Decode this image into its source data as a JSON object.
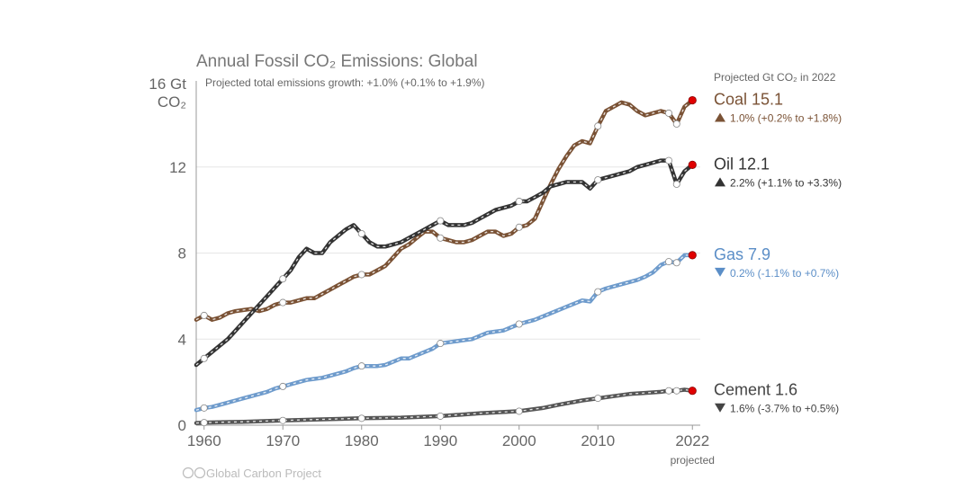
{
  "chart_data": {
    "type": "line",
    "title": "Annual Fossil CO₂ Emissions: Global",
    "subtitle": "Projected total emissions growth: +1.0% (+0.1% to +1.9%)",
    "y_unit_line1": "16 Gt",
    "y_unit_line2": "CO₂",
    "ylim": [
      0,
      16
    ],
    "xlim": [
      1959,
      2023
    ],
    "yticks": [
      0,
      4,
      8,
      12
    ],
    "xticks": [
      1960,
      1970,
      1980,
      1990,
      2000,
      2010,
      2022
    ],
    "xtick_note": "projected",
    "side_heading": "Projected Gt CO₂ in 2022",
    "credit": "Global Carbon Project",
    "series": [
      {
        "name": "Coal",
        "projected": "15.1",
        "change": "1.0% (+0.2% to +1.8%)",
        "direction": "up",
        "color": "#7a5235",
        "label_color": "#7a5235",
        "x": [
          1959,
          1960,
          1961,
          1962,
          1963,
          1964,
          1965,
          1966,
          1967,
          1968,
          1969,
          1970,
          1971,
          1972,
          1973,
          1974,
          1975,
          1976,
          1977,
          1978,
          1979,
          1980,
          1981,
          1982,
          1983,
          1984,
          1985,
          1986,
          1987,
          1988,
          1989,
          1990,
          1991,
          1992,
          1993,
          1994,
          1995,
          1996,
          1997,
          1998,
          1999,
          2000,
          2001,
          2002,
          2003,
          2004,
          2005,
          2006,
          2007,
          2008,
          2009,
          2010,
          2011,
          2012,
          2013,
          2014,
          2015,
          2016,
          2017,
          2018,
          2019,
          2020,
          2021,
          2022
        ],
        "y": [
          4.9,
          5.1,
          4.9,
          5.0,
          5.2,
          5.3,
          5.35,
          5.4,
          5.3,
          5.4,
          5.6,
          5.7,
          5.7,
          5.8,
          5.9,
          5.9,
          6.1,
          6.3,
          6.5,
          6.7,
          6.9,
          7.0,
          7.0,
          7.2,
          7.4,
          7.8,
          8.2,
          8.4,
          8.7,
          9.0,
          9.0,
          8.7,
          8.6,
          8.5,
          8.5,
          8.6,
          8.8,
          9.0,
          9.0,
          8.8,
          8.9,
          9.2,
          9.3,
          9.6,
          10.4,
          11.2,
          11.9,
          12.5,
          13.0,
          13.2,
          13.1,
          13.9,
          14.6,
          14.8,
          15.0,
          14.9,
          14.6,
          14.4,
          14.5,
          14.6,
          14.5,
          14.0,
          14.8,
          15.1
        ]
      },
      {
        "name": "Oil",
        "projected": "12.1",
        "change": "2.2% (+1.1% to +3.3%)",
        "direction": "up",
        "color": "#333333",
        "label_color": "#333333",
        "x": [
          1959,
          1960,
          1961,
          1962,
          1963,
          1964,
          1965,
          1966,
          1967,
          1968,
          1969,
          1970,
          1971,
          1972,
          1973,
          1974,
          1975,
          1976,
          1977,
          1978,
          1979,
          1980,
          1981,
          1982,
          1983,
          1984,
          1985,
          1986,
          1987,
          1988,
          1989,
          1990,
          1991,
          1992,
          1993,
          1994,
          1995,
          1996,
          1997,
          1998,
          1999,
          2000,
          2001,
          2002,
          2003,
          2004,
          2005,
          2006,
          2007,
          2008,
          2009,
          2010,
          2011,
          2012,
          2013,
          2014,
          2015,
          2016,
          2017,
          2018,
          2019,
          2020,
          2021,
          2022
        ],
        "y": [
          2.8,
          3.1,
          3.4,
          3.7,
          4.0,
          4.4,
          4.8,
          5.2,
          5.6,
          6.0,
          6.4,
          6.8,
          7.2,
          7.8,
          8.2,
          8.0,
          8.0,
          8.5,
          8.8,
          9.1,
          9.3,
          8.9,
          8.5,
          8.3,
          8.3,
          8.4,
          8.5,
          8.7,
          8.9,
          9.1,
          9.3,
          9.5,
          9.3,
          9.3,
          9.3,
          9.4,
          9.6,
          9.8,
          10.0,
          10.1,
          10.2,
          10.4,
          10.4,
          10.6,
          10.8,
          11.1,
          11.2,
          11.3,
          11.3,
          11.3,
          11.0,
          11.4,
          11.5,
          11.6,
          11.7,
          11.8,
          12.0,
          12.1,
          12.2,
          12.3,
          12.3,
          11.2,
          11.8,
          12.1
        ]
      },
      {
        "name": "Gas",
        "projected": "7.9",
        "change": "0.2% (-1.1% to +0.7%)",
        "direction": "down",
        "color": "#6e9bcc",
        "label_color": "#5b8ec7",
        "x": [
          1959,
          1960,
          1961,
          1962,
          1963,
          1964,
          1965,
          1966,
          1967,
          1968,
          1969,
          1970,
          1971,
          1972,
          1973,
          1974,
          1975,
          1976,
          1977,
          1978,
          1979,
          1980,
          1981,
          1982,
          1983,
          1984,
          1985,
          1986,
          1987,
          1988,
          1989,
          1990,
          1991,
          1992,
          1993,
          1994,
          1995,
          1996,
          1997,
          1998,
          1999,
          2000,
          2001,
          2002,
          2003,
          2004,
          2005,
          2006,
          2007,
          2008,
          2009,
          2010,
          2011,
          2012,
          2013,
          2014,
          2015,
          2016,
          2017,
          2018,
          2019,
          2020,
          2021,
          2022
        ],
        "y": [
          0.7,
          0.8,
          0.85,
          0.95,
          1.05,
          1.15,
          1.25,
          1.35,
          1.45,
          1.55,
          1.7,
          1.8,
          1.9,
          2.0,
          2.1,
          2.15,
          2.2,
          2.3,
          2.4,
          2.5,
          2.65,
          2.75,
          2.75,
          2.75,
          2.8,
          2.95,
          3.1,
          3.1,
          3.25,
          3.4,
          3.55,
          3.8,
          3.85,
          3.9,
          3.95,
          4.0,
          4.15,
          4.3,
          4.35,
          4.4,
          4.55,
          4.7,
          4.8,
          4.9,
          5.05,
          5.2,
          5.35,
          5.5,
          5.65,
          5.8,
          5.75,
          6.2,
          6.35,
          6.45,
          6.55,
          6.65,
          6.75,
          6.9,
          7.1,
          7.45,
          7.6,
          7.55,
          7.9,
          7.9
        ]
      },
      {
        "name": "Cement",
        "projected": "1.6",
        "change": "1.6% (-3.7% to +0.5%)",
        "direction": "down",
        "color": "#555555",
        "label_color": "#444444",
        "x": [
          1959,
          1960,
          1965,
          1970,
          1975,
          1980,
          1985,
          1990,
          1995,
          2000,
          2003,
          2005,
          2008,
          2010,
          2012,
          2014,
          2016,
          2018,
          2019,
          2020,
          2021,
          2022
        ],
        "y": [
          0.1,
          0.12,
          0.16,
          0.22,
          0.27,
          0.32,
          0.35,
          0.42,
          0.55,
          0.65,
          0.8,
          0.95,
          1.15,
          1.25,
          1.35,
          1.45,
          1.5,
          1.55,
          1.6,
          1.6,
          1.65,
          1.6
        ]
      }
    ]
  }
}
